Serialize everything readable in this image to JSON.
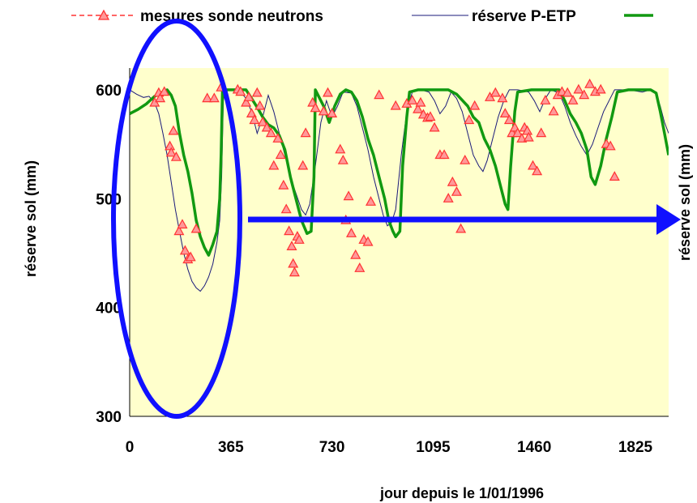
{
  "legend": {
    "measures_label": "mesures sonde neutrons",
    "reserve_label": "réserve P-ETP"
  },
  "colors": {
    "plot_background": "#FFFFCC",
    "measures": "#FF3333",
    "measures_fill": "#FF9999",
    "thin_series": "#1A1A7A",
    "reserve": "#119911",
    "annotation": "#1010FF"
  },
  "chart_data": {
    "type": "line",
    "title": "",
    "xlabel": "jour depuis le 1/01/1996",
    "ylabel": "réserve sol (mm)",
    "ylabel_right": "réserve sol (mm)",
    "xlim": [
      0,
      1945
    ],
    "ylim": [
      300,
      620
    ],
    "x_ticks": [
      0,
      365,
      730,
      1095,
      1460,
      1825
    ],
    "y_ticks": [
      300,
      400,
      500,
      600
    ],
    "grid": false,
    "legend_position": "top",
    "series": [
      {
        "name": "réserve P-ETP",
        "style": "thick-green-line",
        "points": [
          [
            0,
            578
          ],
          [
            30,
            582
          ],
          [
            60,
            587
          ],
          [
            90,
            594
          ],
          [
            120,
            598
          ],
          [
            135,
            600
          ],
          [
            150,
            595
          ],
          [
            165,
            585
          ],
          [
            180,
            560
          ],
          [
            195,
            540
          ],
          [
            210,
            525
          ],
          [
            225,
            505
          ],
          [
            240,
            480
          ],
          [
            255,
            465
          ],
          [
            270,
            455
          ],
          [
            285,
            448
          ],
          [
            300,
            458
          ],
          [
            315,
            470
          ],
          [
            325,
            500
          ],
          [
            330,
            540
          ],
          [
            335,
            600
          ],
          [
            360,
            600
          ],
          [
            400,
            600
          ],
          [
            420,
            600
          ],
          [
            440,
            592
          ],
          [
            460,
            584
          ],
          [
            480,
            575
          ],
          [
            500,
            568
          ],
          [
            520,
            565
          ],
          [
            540,
            558
          ],
          [
            560,
            545
          ],
          [
            580,
            520
          ],
          [
            600,
            500
          ],
          [
            620,
            480
          ],
          [
            640,
            468
          ],
          [
            655,
            470
          ],
          [
            665,
            520
          ],
          [
            670,
            600
          ],
          [
            700,
            585
          ],
          [
            720,
            570
          ],
          [
            740,
            585
          ],
          [
            760,
            596
          ],
          [
            780,
            600
          ],
          [
            800,
            598
          ],
          [
            820,
            590
          ],
          [
            840,
            575
          ],
          [
            860,
            555
          ],
          [
            880,
            540
          ],
          [
            900,
            520
          ],
          [
            920,
            500
          ],
          [
            935,
            480
          ],
          [
            950,
            470
          ],
          [
            960,
            465
          ],
          [
            975,
            470
          ],
          [
            985,
            530
          ],
          [
            1000,
            575
          ],
          [
            1010,
            598
          ],
          [
            1040,
            600
          ],
          [
            1080,
            600
          ],
          [
            1120,
            600
          ],
          [
            1150,
            600
          ],
          [
            1180,
            596
          ],
          [
            1220,
            585
          ],
          [
            1240,
            575
          ],
          [
            1260,
            570
          ],
          [
            1280,
            555
          ],
          [
            1300,
            545
          ],
          [
            1320,
            530
          ],
          [
            1340,
            510
          ],
          [
            1355,
            495
          ],
          [
            1365,
            490
          ],
          [
            1375,
            530
          ],
          [
            1390,
            580
          ],
          [
            1400,
            598
          ],
          [
            1450,
            600
          ],
          [
            1500,
            600
          ],
          [
            1520,
            600
          ],
          [
            1550,
            600
          ],
          [
            1570,
            590
          ],
          [
            1590,
            578
          ],
          [
            1610,
            570
          ],
          [
            1630,
            560
          ],
          [
            1650,
            545
          ],
          [
            1665,
            520
          ],
          [
            1680,
            513
          ],
          [
            1700,
            530
          ],
          [
            1720,
            555
          ],
          [
            1740,
            575
          ],
          [
            1760,
            598
          ],
          [
            1800,
            600
          ],
          [
            1850,
            600
          ],
          [
            1880,
            600
          ],
          [
            1900,
            597
          ],
          [
            1915,
            580
          ],
          [
            1930,
            560
          ],
          [
            1945,
            540
          ]
        ]
      },
      {
        "name": "",
        "style": "thin-navy-line",
        "points": [
          [
            0,
            600
          ],
          [
            25,
            596
          ],
          [
            50,
            593
          ],
          [
            70,
            594
          ],
          [
            90,
            588
          ],
          [
            105,
            578
          ],
          [
            120,
            560
          ],
          [
            135,
            540
          ],
          [
            150,
            515
          ],
          [
            165,
            490
          ],
          [
            180,
            470
          ],
          [
            195,
            450
          ],
          [
            210,
            435
          ],
          [
            225,
            424
          ],
          [
            240,
            418
          ],
          [
            255,
            415
          ],
          [
            270,
            420
          ],
          [
            285,
            428
          ],
          [
            300,
            440
          ],
          [
            315,
            460
          ],
          [
            325,
            480
          ],
          [
            332,
            520
          ],
          [
            338,
            590
          ],
          [
            345,
            600
          ],
          [
            380,
            600
          ],
          [
            400,
            598
          ],
          [
            420,
            592
          ],
          [
            440,
            580
          ],
          [
            460,
            560
          ],
          [
            480,
            575
          ],
          [
            500,
            595
          ],
          [
            520,
            580
          ],
          [
            540,
            560
          ],
          [
            560,
            540
          ],
          [
            580,
            520
          ],
          [
            600,
            505
          ],
          [
            620,
            490
          ],
          [
            635,
            485
          ],
          [
            650,
            495
          ],
          [
            670,
            530
          ],
          [
            690,
            570
          ],
          [
            710,
            590
          ],
          [
            730,
            575
          ],
          [
            750,
            585
          ],
          [
            770,
            598
          ],
          [
            800,
            597
          ],
          [
            820,
            585
          ],
          [
            840,
            565
          ],
          [
            860,
            545
          ],
          [
            880,
            520
          ],
          [
            900,
            500
          ],
          [
            915,
            485
          ],
          [
            930,
            475
          ],
          [
            945,
            478
          ],
          [
            960,
            490
          ],
          [
            980,
            540
          ],
          [
            1000,
            580
          ],
          [
            1020,
            598
          ],
          [
            1050,
            600
          ],
          [
            1080,
            598
          ],
          [
            1100,
            590
          ],
          [
            1120,
            578
          ],
          [
            1140,
            585
          ],
          [
            1160,
            598
          ],
          [
            1180,
            592
          ],
          [
            1200,
            580
          ],
          [
            1220,
            560
          ],
          [
            1240,
            540
          ],
          [
            1260,
            530
          ],
          [
            1275,
            525
          ],
          [
            1290,
            535
          ],
          [
            1310,
            555
          ],
          [
            1330,
            575
          ],
          [
            1350,
            590
          ],
          [
            1370,
            600
          ],
          [
            1400,
            600
          ],
          [
            1440,
            598
          ],
          [
            1460,
            590
          ],
          [
            1480,
            580
          ],
          [
            1500,
            592
          ],
          [
            1520,
            600
          ],
          [
            1550,
            597
          ],
          [
            1570,
            585
          ],
          [
            1590,
            570
          ],
          [
            1610,
            558
          ],
          [
            1630,
            548
          ],
          [
            1650,
            540
          ],
          [
            1670,
            550
          ],
          [
            1690,
            565
          ],
          [
            1710,
            580
          ],
          [
            1730,
            590
          ],
          [
            1750,
            600
          ],
          [
            1800,
            600
          ],
          [
            1850,
            598
          ],
          [
            1880,
            600
          ],
          [
            1900,
            596
          ],
          [
            1915,
            585
          ],
          [
            1930,
            570
          ],
          [
            1945,
            560
          ]
        ]
      },
      {
        "name": "mesures sonde neutrons",
        "style": "markers-triangle",
        "points": [
          [
            90,
            588
          ],
          [
            105,
            597
          ],
          [
            110,
            592
          ],
          [
            125,
            598
          ],
          [
            145,
            548
          ],
          [
            150,
            542
          ],
          [
            158,
            562
          ],
          [
            168,
            538
          ],
          [
            178,
            470
          ],
          [
            190,
            476
          ],
          [
            200,
            452
          ],
          [
            210,
            444
          ],
          [
            220,
            446
          ],
          [
            240,
            472
          ],
          [
            280,
            592
          ],
          [
            305,
            592
          ],
          [
            330,
            602
          ],
          [
            390,
            600
          ],
          [
            400,
            598
          ],
          [
            420,
            588
          ],
          [
            430,
            593
          ],
          [
            440,
            578
          ],
          [
            450,
            572
          ],
          [
            460,
            597
          ],
          [
            470,
            585
          ],
          [
            480,
            570
          ],
          [
            495,
            565
          ],
          [
            510,
            560
          ],
          [
            520,
            530
          ],
          [
            535,
            555
          ],
          [
            545,
            540
          ],
          [
            555,
            512
          ],
          [
            565,
            490
          ],
          [
            575,
            470
          ],
          [
            585,
            456
          ],
          [
            590,
            440
          ],
          [
            595,
            432
          ],
          [
            605,
            465
          ],
          [
            612,
            462
          ],
          [
            625,
            530
          ],
          [
            635,
            560
          ],
          [
            660,
            588
          ],
          [
            670,
            583
          ],
          [
            700,
            580
          ],
          [
            715,
            597
          ],
          [
            730,
            578
          ],
          [
            760,
            545
          ],
          [
            770,
            535
          ],
          [
            780,
            480
          ],
          [
            790,
            502
          ],
          [
            800,
            468
          ],
          [
            815,
            448
          ],
          [
            830,
            436
          ],
          [
            845,
            462
          ],
          [
            860,
            460
          ],
          [
            870,
            497
          ],
          [
            900,
            595
          ],
          [
            960,
            585
          ],
          [
            1000,
            587
          ],
          [
            1020,
            590
          ],
          [
            1040,
            582
          ],
          [
            1050,
            588
          ],
          [
            1060,
            577
          ],
          [
            1075,
            574
          ],
          [
            1085,
            575
          ],
          [
            1100,
            565
          ],
          [
            1120,
            540
          ],
          [
            1135,
            540
          ],
          [
            1150,
            500
          ],
          [
            1165,
            515
          ],
          [
            1180,
            506
          ],
          [
            1195,
            472
          ],
          [
            1210,
            535
          ],
          [
            1225,
            572
          ],
          [
            1245,
            585
          ],
          [
            1300,
            593
          ],
          [
            1320,
            597
          ],
          [
            1345,
            592
          ],
          [
            1355,
            578
          ],
          [
            1370,
            572
          ],
          [
            1380,
            560
          ],
          [
            1390,
            565
          ],
          [
            1400,
            560
          ],
          [
            1415,
            555
          ],
          [
            1425,
            565
          ],
          [
            1435,
            562
          ],
          [
            1440,
            556
          ],
          [
            1455,
            530
          ],
          [
            1470,
            525
          ],
          [
            1485,
            560
          ],
          [
            1500,
            590
          ],
          [
            1530,
            580
          ],
          [
            1545,
            595
          ],
          [
            1560,
            598
          ],
          [
            1580,
            597
          ],
          [
            1600,
            590
          ],
          [
            1620,
            600
          ],
          [
            1640,
            595
          ],
          [
            1660,
            605
          ],
          [
            1680,
            598
          ],
          [
            1700,
            600
          ],
          [
            1720,
            550
          ],
          [
            1735,
            548
          ],
          [
            1750,
            520
          ]
        ]
      }
    ],
    "annotations": [
      {
        "type": "ellipse",
        "description": "highlight of year 1996"
      },
      {
        "type": "arrow",
        "description": "pointing right at ~480 mm"
      }
    ]
  }
}
